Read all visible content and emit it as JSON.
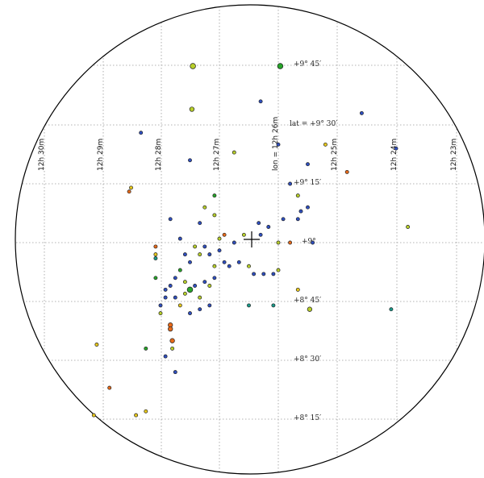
{
  "lon_labels": [
    "12h 30m",
    "12h 29m",
    "12h 28m",
    "12h 27m",
    "lon = 12h 26m",
    "12h 25m",
    "12h 24m",
    "12h 23m"
  ],
  "lat_labels": [
    "+9° 45′",
    "lat = +9° 30′",
    "+9° 15′",
    "+9°",
    "+8° 45′",
    "+8° 30′",
    "+8° 15′"
  ],
  "center_marker": "crosshair",
  "colors": {
    "blue": "#2f4fbf",
    "green": "#27a52a",
    "yellow_green": "#b8cf2a",
    "orange": "#e86a1a",
    "yellow": "#e8c81c",
    "teal": "#1a9a8a"
  },
  "objects": [
    {
      "ra": "12h 27m 27s",
      "dec": "+9° 45′",
      "color": "yellow_green",
      "mag": "bright"
    },
    {
      "ra": "12h 25m 58s",
      "dec": "+9° 45′",
      "color": "green",
      "mag": "bright"
    },
    {
      "ra": "12h 27m 28s",
      "dec": "+9° 34′",
      "color": "yellow_green",
      "mag": "mid"
    },
    {
      "ra": "12h 26m 18s",
      "dec": "+9° 36′",
      "color": "blue",
      "mag": "faint"
    },
    {
      "ra": "12h 24m 35s",
      "dec": "+9° 33′",
      "color": "blue",
      "mag": "faint"
    },
    {
      "ra": "12h 24m 00s",
      "dec": "+9° 24′",
      "color": "blue",
      "mag": "faint"
    },
    {
      "ra": "12h 25m 12s",
      "dec": "+9° 25′",
      "color": "yellow",
      "mag": "faint"
    },
    {
      "ra": "12h 24m 50s",
      "dec": "+9° 18′",
      "color": "orange",
      "mag": "faint"
    },
    {
      "ra": "12h 25m 30s",
      "dec": "+9° 20′",
      "color": "blue",
      "mag": "faint"
    },
    {
      "ra": "12h 26m 45s",
      "dec": "+9° 23′",
      "color": "yellow_green",
      "mag": "faint"
    },
    {
      "ra": "12h 27m 30s",
      "dec": "+9° 21′",
      "color": "blue",
      "mag": "faint"
    },
    {
      "ra": "12h 28m 20s",
      "dec": "+9° 28′",
      "color": "blue",
      "mag": "faint"
    },
    {
      "ra": "12h 26m 00s",
      "dec": "+9° 25′",
      "color": "blue",
      "mag": "faint"
    },
    {
      "ra": "12h 25m 48s",
      "dec": "+9° 15′",
      "color": "blue",
      "mag": "faint"
    },
    {
      "ra": "12h 25m 40s",
      "dec": "+9° 12′",
      "color": "yellow_green",
      "mag": "faint"
    },
    {
      "ra": "12h 25m 30s",
      "dec": "+9° 09′",
      "color": "blue",
      "mag": "faint"
    },
    {
      "ra": "12h 25m 40s",
      "dec": "+9° 06′",
      "color": "blue",
      "mag": "faint"
    },
    {
      "ra": "12h 25m 55s",
      "dec": "+9° 06′",
      "color": "blue",
      "mag": "faint"
    },
    {
      "ra": "12h 26m 20s",
      "dec": "+9° 05′",
      "color": "blue",
      "mag": "faint"
    },
    {
      "ra": "12h 26m 10s",
      "dec": "+9° 04′",
      "color": "blue",
      "mag": "faint"
    },
    {
      "ra": "12h 26m 35s",
      "dec": "+9° 02′",
      "color": "yellow_green",
      "mag": "faint"
    },
    {
      "ra": "12h 26m 18s",
      "dec": "+9° 02′",
      "color": "blue",
      "mag": "faint"
    },
    {
      "ra": "12h 26m 45s",
      "dec": "+9° 00′",
      "color": "blue",
      "mag": "faint"
    },
    {
      "ra": "12h 26m 00s",
      "dec": "+9° 00′",
      "color": "yellow_green",
      "mag": "faint"
    },
    {
      "ra": "12h 25m 48s",
      "dec": "+9° 00′",
      "color": "orange",
      "mag": "faint"
    },
    {
      "ra": "12h 25m 25s",
      "dec": "+9° 00′",
      "color": "blue",
      "mag": "faint"
    },
    {
      "ra": "12h 26m 55s",
      "dec": "+9° 02′",
      "color": "orange",
      "mag": "faint"
    },
    {
      "ra": "12h 25m 37s",
      "dec": "+9° 08′",
      "color": "blue",
      "mag": "faint"
    },
    {
      "ra": "12h 27m 05s",
      "dec": "+9° 12′",
      "color": "green",
      "mag": "faint"
    },
    {
      "ra": "12h 27m 15s",
      "dec": "+9° 09′",
      "color": "yellow_green",
      "mag": "faint"
    },
    {
      "ra": "12h 27m 05s",
      "dec": "+9° 07′",
      "color": "yellow_green",
      "mag": "faint"
    },
    {
      "ra": "12h 27m 20s",
      "dec": "+9° 05′",
      "color": "blue",
      "mag": "faint"
    },
    {
      "ra": "12h 27m 00s",
      "dec": "+9° 01′",
      "color": "yellow_green",
      "mag": "faint"
    },
    {
      "ra": "12h 27m 40s",
      "dec": "+9° 01′",
      "color": "blue",
      "mag": "faint"
    },
    {
      "ra": "12h 27m 50s",
      "dec": "+9° 06′",
      "color": "blue",
      "mag": "faint"
    },
    {
      "ra": "12h 28m 30s",
      "dec": "+9° 14′",
      "color": "yellow",
      "mag": "faint"
    },
    {
      "ra": "12h 28m 32s",
      "dec": "+9° 13′",
      "color": "orange",
      "mag": "faint"
    },
    {
      "ra": "12h 28m 05s",
      "dec": "+8° 59′",
      "color": "orange",
      "mag": "faint"
    },
    {
      "ra": "12h 28m 05s",
      "dec": "+8° 57′",
      "color": "yellow",
      "mag": "faint"
    },
    {
      "ra": "12h 28m 05s",
      "dec": "+8° 56′",
      "color": "teal",
      "mag": "faint"
    },
    {
      "ra": "12h 27m 00s",
      "dec": "+8° 58′",
      "color": "blue",
      "mag": "faint"
    },
    {
      "ra": "12h 27m 10s",
      "dec": "+8° 57′",
      "color": "blue",
      "mag": "faint"
    },
    {
      "ra": "12h 27m 20s",
      "dec": "+8° 57′",
      "color": "yellow_green",
      "mag": "faint"
    },
    {
      "ra": "12h 27m 30s",
      "dec": "+8° 55′",
      "color": "blue",
      "mag": "faint"
    },
    {
      "ra": "12h 27m 35s",
      "dec": "+8° 57′",
      "color": "blue",
      "mag": "faint"
    },
    {
      "ra": "12h 27m 25s",
      "dec": "+8° 59′",
      "color": "yellow_green",
      "mag": "faint"
    },
    {
      "ra": "12h 27m 15s",
      "dec": "+8° 59′",
      "color": "blue",
      "mag": "faint"
    },
    {
      "ra": "12h 27m 05s",
      "dec": "+8° 54′",
      "color": "yellow_green",
      "mag": "faint"
    },
    {
      "ra": "12h 26m 55s",
      "dec": "+8° 55′",
      "color": "blue",
      "mag": "faint"
    },
    {
      "ra": "12h 26m 50s",
      "dec": "+8° 54′",
      "color": "blue",
      "mag": "faint"
    },
    {
      "ra": "12h 26m 40s",
      "dec": "+8° 55′",
      "color": "blue",
      "mag": "faint"
    },
    {
      "ra": "12h 26m 30s",
      "dec": "+8° 54′",
      "color": "yellow_green",
      "mag": "faint"
    },
    {
      "ra": "12h 26m 25s",
      "dec": "+8° 52′",
      "color": "blue",
      "mag": "faint"
    },
    {
      "ra": "12h 26m 15s",
      "dec": "+8° 52′",
      "color": "blue",
      "mag": "faint"
    },
    {
      "ra": "12h 26m 05s",
      "dec": "+8° 52′",
      "color": "blue",
      "mag": "faint"
    },
    {
      "ra": "12h 26m 00s",
      "dec": "+8° 53′",
      "color": "yellow_green",
      "mag": "faint"
    },
    {
      "ra": "12h 27m 40s",
      "dec": "+8° 53′",
      "color": "green",
      "mag": "faint"
    },
    {
      "ra": "12h 27m 35s",
      "dec": "+8° 50′",
      "color": "yellow_green",
      "mag": "faint"
    },
    {
      "ra": "12h 27m 45s",
      "dec": "+8° 51′",
      "color": "blue",
      "mag": "faint"
    },
    {
      "ra": "12h 27m 30s",
      "dec": "+8° 48′",
      "color": "green",
      "mag": "bright"
    },
    {
      "ra": "12h 27m 25s",
      "dec": "+8° 49′",
      "color": "blue",
      "mag": "faint"
    },
    {
      "ra": "12h 27m 15s",
      "dec": "+8° 50′",
      "color": "blue",
      "mag": "faint"
    },
    {
      "ra": "12h 27m 10s",
      "dec": "+8° 49′",
      "color": "yellow_green",
      "mag": "faint"
    },
    {
      "ra": "12h 27m 05s",
      "dec": "+8° 51′",
      "color": "blue",
      "mag": "faint"
    },
    {
      "ra": "12h 27m 50s",
      "dec": "+8° 49′",
      "color": "blue",
      "mag": "faint"
    },
    {
      "ra": "12h 27m 55s",
      "dec": "+8° 48′",
      "color": "blue",
      "mag": "faint"
    },
    {
      "ra": "12h 27m 35s",
      "dec": "+8° 47′",
      "color": "yellow_green",
      "mag": "faint"
    },
    {
      "ra": "12h 27m 45s",
      "dec": "+8° 46′",
      "color": "blue",
      "mag": "faint"
    },
    {
      "ra": "12h 27m 20s",
      "dec": "+8° 46′",
      "color": "yellow_green",
      "mag": "faint"
    },
    {
      "ra": "12h 27m 40s",
      "dec": "+8° 44′",
      "color": "yellow",
      "mag": "faint"
    },
    {
      "ra": "12h 27m 30s",
      "dec": "+8° 42′",
      "color": "blue",
      "mag": "faint"
    },
    {
      "ra": "12h 27m 20s",
      "dec": "+8° 43′",
      "color": "blue",
      "mag": "faint"
    },
    {
      "ra": "12h 27m 55s",
      "dec": "+8° 46′",
      "color": "blue",
      "mag": "faint"
    },
    {
      "ra": "12h 27m 10s",
      "dec": "+8° 44′",
      "color": "blue",
      "mag": "faint"
    },
    {
      "ra": "12h 28m 00s",
      "dec": "+8° 44′",
      "color": "blue",
      "mag": "faint"
    },
    {
      "ra": "12h 28m 00s",
      "dec": "+8° 42′",
      "color": "yellow_green",
      "mag": "faint"
    },
    {
      "ra": "12h 28m 05s",
      "dec": "+8° 51′",
      "color": "green",
      "mag": "faint"
    },
    {
      "ra": "12h 26m 30s",
      "dec": "+8° 44′",
      "color": "teal",
      "mag": "faint"
    },
    {
      "ra": "12h 26m 05s",
      "dec": "+8° 44′",
      "color": "teal",
      "mag": "faint"
    },
    {
      "ra": "12h 25m 40s",
      "dec": "+8° 48′",
      "color": "yellow",
      "mag": "faint"
    },
    {
      "ra": "12h 25m 28s",
      "dec": "+8° 43′",
      "color": "yellow_green",
      "mag": "mid"
    },
    {
      "ra": "12h 24m 05s",
      "dec": "+8° 43′",
      "color": "teal",
      "mag": "faint"
    },
    {
      "ra": "12h 23m 48s",
      "dec": "+9° 04′",
      "color": "yellow_green",
      "mag": "faint"
    },
    {
      "ra": "12h 27m 50s",
      "dec": "+8° 39′",
      "color": "orange",
      "mag": "mid"
    },
    {
      "ra": "12h 27m 50s",
      "dec": "+8° 38′",
      "color": "orange",
      "mag": "mid"
    },
    {
      "ra": "12h 27m 48s",
      "dec": "+8° 35′",
      "color": "orange",
      "mag": "mid"
    },
    {
      "ra": "12h 27m 48s",
      "dec": "+8° 33′",
      "color": "yellow_green",
      "mag": "faint"
    },
    {
      "ra": "12h 27m 55s",
      "dec": "+8° 31′",
      "color": "blue",
      "mag": "faint"
    },
    {
      "ra": "12h 27m 45s",
      "dec": "+8° 27′",
      "color": "blue",
      "mag": "faint"
    },
    {
      "ra": "12h 28m 15s",
      "dec": "+8° 33′",
      "color": "green",
      "mag": "faint"
    },
    {
      "ra": "12h 29m 05s",
      "dec": "+8° 34′",
      "color": "yellow",
      "mag": "faint"
    },
    {
      "ra": "12h 28m 52s",
      "dec": "+8° 23′",
      "color": "orange",
      "mag": "faint"
    },
    {
      "ra": "12h 28m 15s",
      "dec": "+8° 17′",
      "color": "yellow",
      "mag": "faint"
    },
    {
      "ra": "12h 28m 25s",
      "dec": "+8° 16′",
      "color": "yellow",
      "mag": "faint"
    },
    {
      "ra": "12h 29m 08s",
      "dec": "+8° 16′",
      "color": "yellow",
      "mag": "faint"
    }
  ]
}
